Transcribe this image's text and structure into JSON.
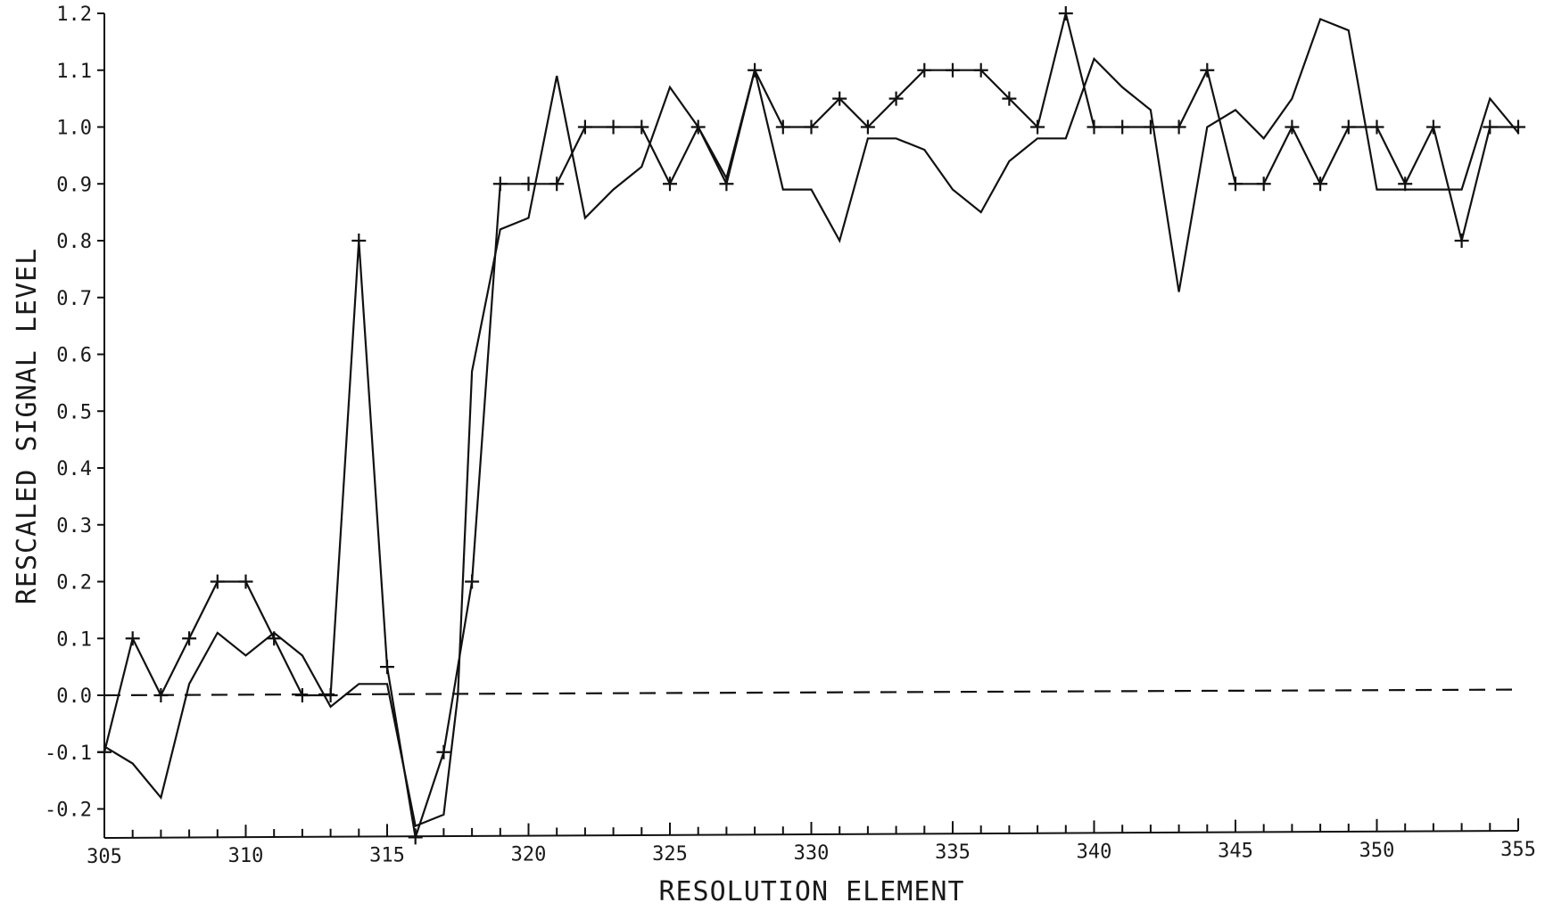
{
  "chart_data": {
    "type": "line",
    "title": "",
    "xlabel": "RESOLUTION ELEMENT",
    "ylabel": "RESCALED SIGNAL LEVEL",
    "xlim": [
      305,
      355
    ],
    "ylim": [
      -0.25,
      1.2
    ],
    "x_ticks": [
      305,
      310,
      315,
      320,
      325,
      330,
      335,
      340,
      345,
      350,
      355
    ],
    "y_ticks": [
      1.2,
      1.1,
      1.0,
      0.9,
      0.8,
      0.7,
      0.6,
      0.5,
      0.4,
      0.3,
      0.2,
      0.1,
      0.0,
      -0.1,
      -0.2
    ],
    "y_tick_labels": [
      "1.2",
      "1.1",
      "1.0",
      "0.9",
      "0.8",
      "0.7",
      "0.6",
      "0.5",
      "0.4",
      "0.3",
      "0.2",
      "0.1",
      "0.0",
      "-0.1",
      "-0.2"
    ],
    "x_tick_labels": [
      "305",
      "310",
      "315",
      "320",
      "325",
      "330",
      "335",
      "340",
      "345",
      "350",
      "355"
    ],
    "grid": false,
    "series": [
      {
        "marker": "plus",
        "x": [
          305,
          306,
          307,
          308,
          309,
          310,
          311,
          312,
          313,
          314,
          315,
          316,
          317,
          318,
          319,
          320,
          321,
          322,
          323,
          324,
          325,
          326,
          327,
          328,
          329,
          330,
          331,
          332,
          333,
          334,
          335,
          336,
          337,
          338,
          339,
          340,
          341,
          342,
          343,
          344,
          345,
          346,
          347,
          348,
          349,
          350,
          351,
          352,
          353,
          354,
          355
        ],
        "values": [
          -0.1,
          0.1,
          0.0,
          0.1,
          0.2,
          0.2,
          0.1,
          0.0,
          0.0,
          0.8,
          0.05,
          -0.25,
          -0.1,
          0.2,
          0.9,
          0.9,
          0.9,
          1.0,
          1.0,
          1.0,
          0.9,
          1.0,
          0.9,
          1.1,
          1.0,
          1.0,
          1.05,
          1.0,
          1.05,
          1.1,
          1.1,
          1.1,
          1.05,
          1.0,
          1.2,
          1.0,
          1.0,
          1.0,
          1.0,
          1.1,
          0.9,
          0.9,
          1.0,
          0.9,
          1.0,
          1.0,
          0.9,
          1.0,
          0.8,
          1.0,
          1.0
        ]
      },
      {
        "marker": "none",
        "x": [
          305,
          306,
          307,
          308,
          309,
          310,
          311,
          312,
          313,
          314,
          315,
          316,
          317,
          317.5,
          318,
          319,
          320,
          321,
          322,
          323,
          324,
          325,
          326,
          327,
          328,
          329,
          330,
          331,
          332,
          333,
          334,
          335,
          336,
          337,
          338,
          339,
          340,
          341,
          342,
          343,
          344,
          345,
          346,
          347,
          348,
          349,
          350,
          351,
          352,
          353,
          354,
          355
        ],
        "values": [
          -0.09,
          -0.12,
          -0.18,
          0.02,
          0.11,
          0.07,
          0.11,
          0.07,
          -0.02,
          0.02,
          0.02,
          -0.23,
          -0.21,
          0.0,
          0.57,
          0.82,
          0.84,
          1.09,
          0.84,
          0.89,
          0.93,
          1.07,
          1.0,
          0.91,
          1.1,
          0.89,
          0.89,
          0.8,
          0.98,
          0.98,
          0.96,
          0.89,
          0.85,
          0.94,
          0.98,
          0.98,
          1.12,
          1.07,
          1.03,
          0.71,
          1.0,
          1.03,
          0.98,
          1.05,
          1.19,
          1.17,
          0.89,
          0.89,
          0.89,
          0.89,
          1.05,
          0.99
        ]
      },
      {
        "marker": "none",
        "style": "dashed",
        "x": [
          305,
          355
        ],
        "values": [
          0.0,
          0.01
        ]
      }
    ]
  }
}
